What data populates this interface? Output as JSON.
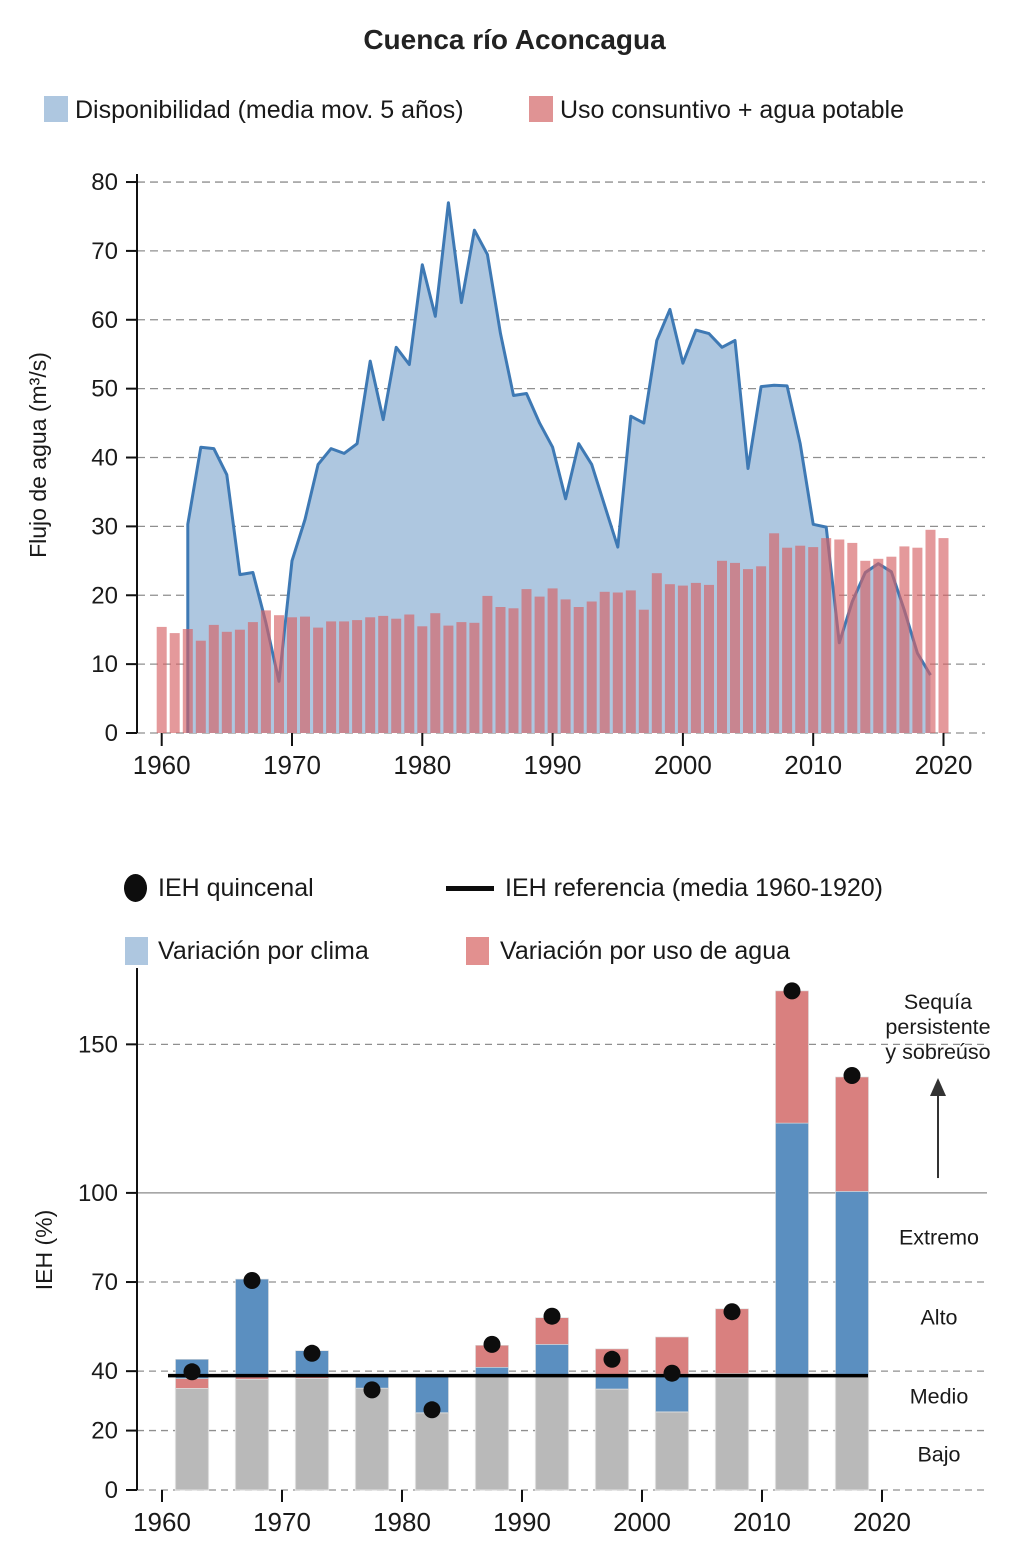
{
  "title": "Cuenca río Aconcagua",
  "colors": {
    "area_fill": "#aec7e0",
    "area_line": "#3e79b4",
    "usage_bar": "rgba(213,99,101,0.65)",
    "ieh_blue": "#5b8fc0",
    "ieh_red": "#d9807f",
    "ieh_gray": "#b9b9b9",
    "dot": "#0d0d0d",
    "grid": "#8f8f8f",
    "axis": "#1a1a1a"
  },
  "chart_data": [
    {
      "id": "flujo",
      "type": "area+bar",
      "title": "Cuenca río Aconcagua",
      "ylabel": "Flujo de agua  (m³/s)",
      "xlabel": "",
      "ylim": [
        0,
        80
      ],
      "yticks": [
        0,
        10,
        20,
        30,
        40,
        50,
        60,
        70,
        80
      ],
      "xticks": [
        1960,
        1970,
        1980,
        1990,
        2000,
        2010,
        2020
      ],
      "grid": "dashed",
      "legend": [
        {
          "label": "Disponibilidad (media mov. 5 años)",
          "marker": "square",
          "color": "#aec7e0"
        },
        {
          "label": "Uso consuntivo + agua potable",
          "marker": "square",
          "color": "#e09394"
        }
      ],
      "series": [
        {
          "name": "Disponibilidad (media mov. 5 años)",
          "type": "area",
          "x_start": 1962,
          "values": [
            30.3,
            41.5,
            41.3,
            37.5,
            23,
            23.3,
            16,
            7.5,
            25,
            31,
            39,
            41.3,
            40.6,
            42,
            54,
            45.5,
            56,
            53.5,
            68,
            60.5,
            77,
            62.5,
            73,
            69.5,
            58,
            49,
            49.3,
            45,
            41.5,
            34,
            42,
            39,
            33,
            27,
            46,
            45,
            57,
            61.5,
            53.7,
            58.5,
            58,
            56,
            57,
            38.4,
            50.3,
            50.5,
            50.4,
            42,
            30.3,
            29.9,
            13.1,
            19.1,
            23.3,
            24.6,
            23.4,
            17.8,
            11.6,
            8.4
          ]
        },
        {
          "name": "Uso consuntivo + agua potable",
          "type": "bar",
          "x_start": 1960,
          "values": [
            15.4,
            14.5,
            15.1,
            13.4,
            15.7,
            14.7,
            15,
            16.1,
            17.8,
            17.1,
            16.8,
            16.9,
            15.3,
            16.2,
            16.2,
            16.4,
            16.8,
            17,
            16.6,
            17.2,
            15.5,
            17.4,
            15.6,
            16.1,
            16,
            19.9,
            18.3,
            18.1,
            20.9,
            19.8,
            21,
            19.4,
            18.3,
            19.1,
            20.5,
            20.4,
            20.7,
            17.9,
            23.2,
            21.6,
            21.4,
            21.8,
            21.5,
            25,
            24.7,
            23.8,
            24.2,
            29,
            26.9,
            27.2,
            27,
            28.3,
            28.1,
            27.6,
            25,
            25.3,
            25.6,
            27.1,
            26.9,
            29.5,
            28.3
          ]
        }
      ]
    },
    {
      "id": "ieh",
      "type": "stacked-bar+scatter",
      "ylabel": "IEH (%)",
      "ylim": [
        0,
        176
      ],
      "yticks": [
        0,
        20,
        40,
        70,
        100,
        150
      ],
      "xticks": [
        1960,
        1970,
        1980,
        1990,
        2000,
        2010,
        2020
      ],
      "legend": [
        {
          "label": "IEH quincenal",
          "marker": "dot",
          "color": "#0d0d0d"
        },
        {
          "label": "IEH referencia (media 1960-1920)",
          "marker": "line",
          "color": "#000000"
        },
        {
          "label": "Variación por clima",
          "marker": "square",
          "color": "#aec7e0"
        },
        {
          "label": "Variación por uso de agua",
          "marker": "square",
          "color": "#e2908f"
        }
      ],
      "reference": {
        "label": "IEH referencia (media 1960-1920)",
        "value": 38.5
      },
      "dots_name": "IEH quincenal",
      "bars": [
        {
          "year": 1962,
          "segments": [
            {
              "c": "gray",
              "from": 0,
              "to": 34.2
            },
            {
              "c": "red",
              "from": 34.2,
              "to": 37.5
            },
            {
              "c": "blue",
              "from": 37.5,
              "to": 44
            }
          ],
          "dot": 39.8
        },
        {
          "year": 1967,
          "segments": [
            {
              "c": "gray",
              "from": 0,
              "to": 37.3
            },
            {
              "c": "red",
              "from": 37.3,
              "to": 38.2
            },
            {
              "c": "blue",
              "from": 38.2,
              "to": 71
            }
          ],
          "dot": 70.5
        },
        {
          "year": 1972,
          "segments": [
            {
              "c": "gray",
              "from": 0,
              "to": 37.6
            },
            {
              "c": "red",
              "from": 37.6,
              "to": 38.3
            },
            {
              "c": "blue",
              "from": 38.3,
              "to": 46.9
            }
          ],
          "dot": 46
        },
        {
          "year": 1977,
          "segments": [
            {
              "c": "gray",
              "from": 0,
              "to": 34.3
            },
            {
              "c": "blue",
              "from": 34.3,
              "to": 38.5
            }
          ],
          "dot": 33.7
        },
        {
          "year": 1982,
          "segments": [
            {
              "c": "gray",
              "from": 0,
              "to": 26
            },
            {
              "c": "blue",
              "from": 26,
              "to": 38.5
            }
          ],
          "dot": 27
        },
        {
          "year": 1987,
          "segments": [
            {
              "c": "gray",
              "from": 0,
              "to": 38.5
            },
            {
              "c": "blue",
              "from": 38.5,
              "to": 41.3
            },
            {
              "c": "red",
              "from": 41.3,
              "to": 48.7
            }
          ],
          "dot": 49
        },
        {
          "year": 1992,
          "segments": [
            {
              "c": "gray",
              "from": 0,
              "to": 38.3
            },
            {
              "c": "blue",
              "from": 38.3,
              "to": 49
            },
            {
              "c": "red",
              "from": 49,
              "to": 58
            }
          ],
          "dot": 58.5
        },
        {
          "year": 1997,
          "segments": [
            {
              "c": "gray",
              "from": 0,
              "to": 34
            },
            {
              "c": "blue",
              "from": 34,
              "to": 38
            },
            {
              "c": "red",
              "from": 38,
              "to": 47.5
            }
          ],
          "dot": 44
        },
        {
          "year": 2002,
          "segments": [
            {
              "c": "gray",
              "from": 0,
              "to": 26.3
            },
            {
              "c": "blue",
              "from": 26.3,
              "to": 39
            },
            {
              "c": "red",
              "from": 39,
              "to": 51.5
            }
          ],
          "dot": 39.3
        },
        {
          "year": 2007,
          "segments": [
            {
              "c": "gray",
              "from": 0,
              "to": 37.8
            },
            {
              "c": "blue",
              "from": 37.8,
              "to": 39.2
            },
            {
              "c": "red",
              "from": 39.2,
              "to": 61
            }
          ],
          "dot": 60
        },
        {
          "year": 2012,
          "segments": [
            {
              "c": "gray",
              "from": 0,
              "to": 38.5
            },
            {
              "c": "blue",
              "from": 38.5,
              "to": 123.5
            },
            {
              "c": "red",
              "from": 123.5,
              "to": 168
            }
          ],
          "dot": 168
        },
        {
          "year": 2017,
          "segments": [
            {
              "c": "gray",
              "from": 0,
              "to": 38.5
            },
            {
              "c": "blue",
              "from": 38.5,
              "to": 100.5
            },
            {
              "c": "red",
              "from": 100.5,
              "to": 139
            }
          ],
          "dot": 139.5
        }
      ],
      "zones": [
        {
          "label": "Bajo",
          "value": 12
        },
        {
          "label": "Medio",
          "value": 31.5
        },
        {
          "label": "Alto",
          "value": 58
        },
        {
          "label": "Extremo",
          "value": 85
        }
      ],
      "annotation": {
        "lines": [
          "Sequía",
          "persistente",
          "y sobreúso"
        ],
        "line_values": [
          164.3,
          155.9,
          147.5
        ],
        "arrow_from": 105,
        "arrow_to": 138
      }
    }
  ]
}
